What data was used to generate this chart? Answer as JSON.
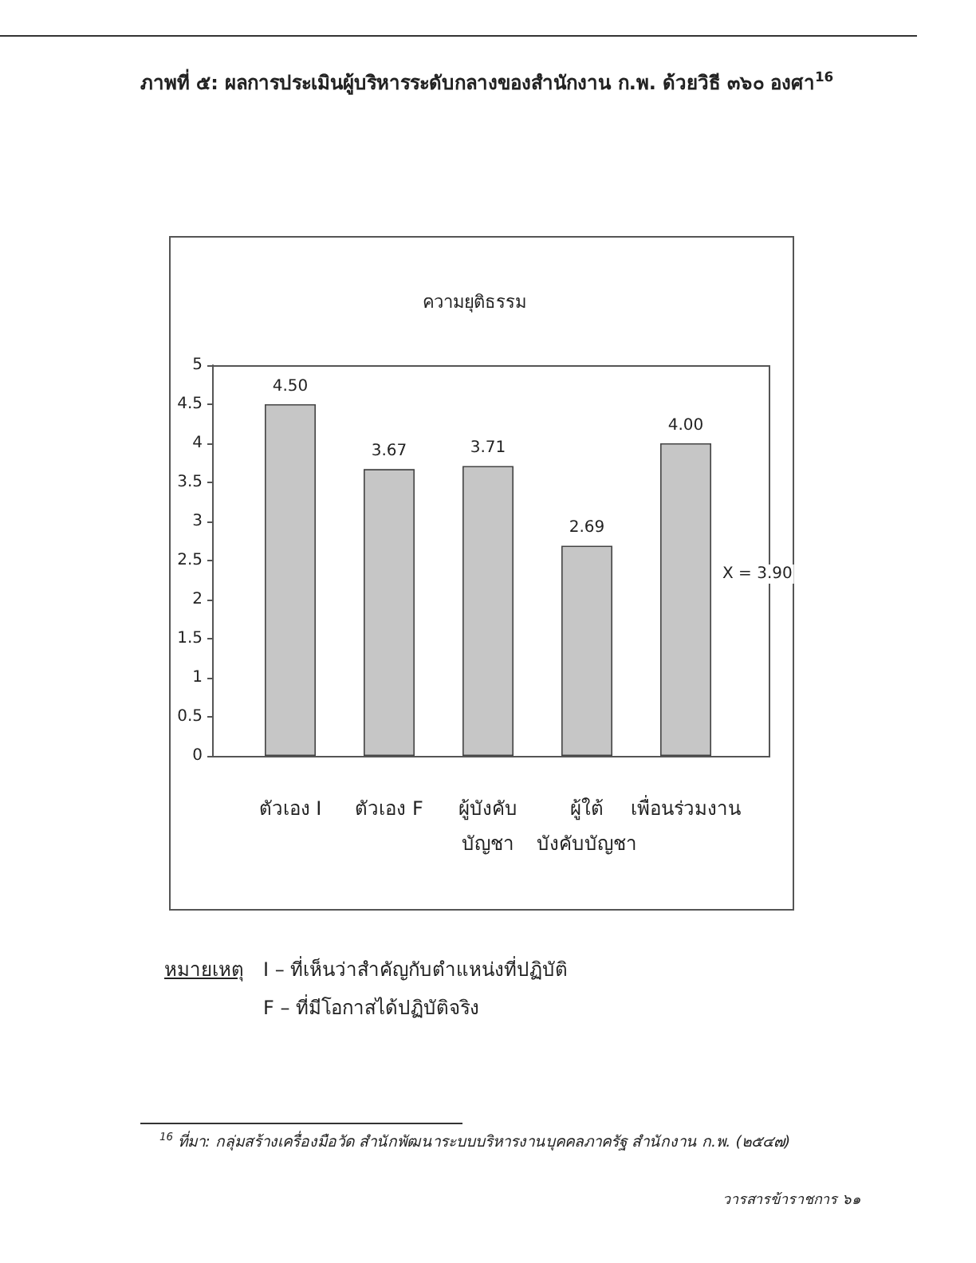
{
  "chart_data": {
    "type": "bar",
    "title": "ภาพที่ ๕: ผลการประเมินผู้บริหารระดับกลางของสำนักงาน ก.พ. ด้วยวิธี ๓๖๐ องศา$^{16}$",
    "subtitle": "ความยุติธรรม",
    "categories": [
      "ตัวเอง I",
      "ตัวเอง F",
      "ผู้บังคับ\nบัญชา",
      "ผู้ใต้\nบังคับบัญชา",
      "เพื่อนร่วมงาน"
    ],
    "values": [
      4.5,
      3.67,
      3.71,
      2.69,
      4.0
    ],
    "value_labels": [
      "4.50",
      "3.67",
      "3.71",
      "2.69",
      "4.00"
    ],
    "color": "#c6c6c6",
    "ylim": [
      0,
      5
    ],
    "yticks": [
      0,
      0.5,
      1,
      1.5,
      2,
      2.5,
      3,
      3.5,
      4,
      4.5,
      5
    ],
    "annotations": [
      "X = 3.90",
      "หมายเหตุ",
      "I – ที่เห็นว่าสำคัญกับตำแหน่งที่ปฏิบัติ",
      "F – ที่มีโอกาสได้ปฏิบัติจริง",
      "$^{16}$ ที่มา: กลุ่มสร้างเครื่องมือวัด สำนักพัฒนาระบบบริหารงานบุคคลภาครัฐ สำนักงาน ก.พ. (๒๕๔๗)",
      "วารสารข้าราชการ ๖๑"
    ]
  }
}
